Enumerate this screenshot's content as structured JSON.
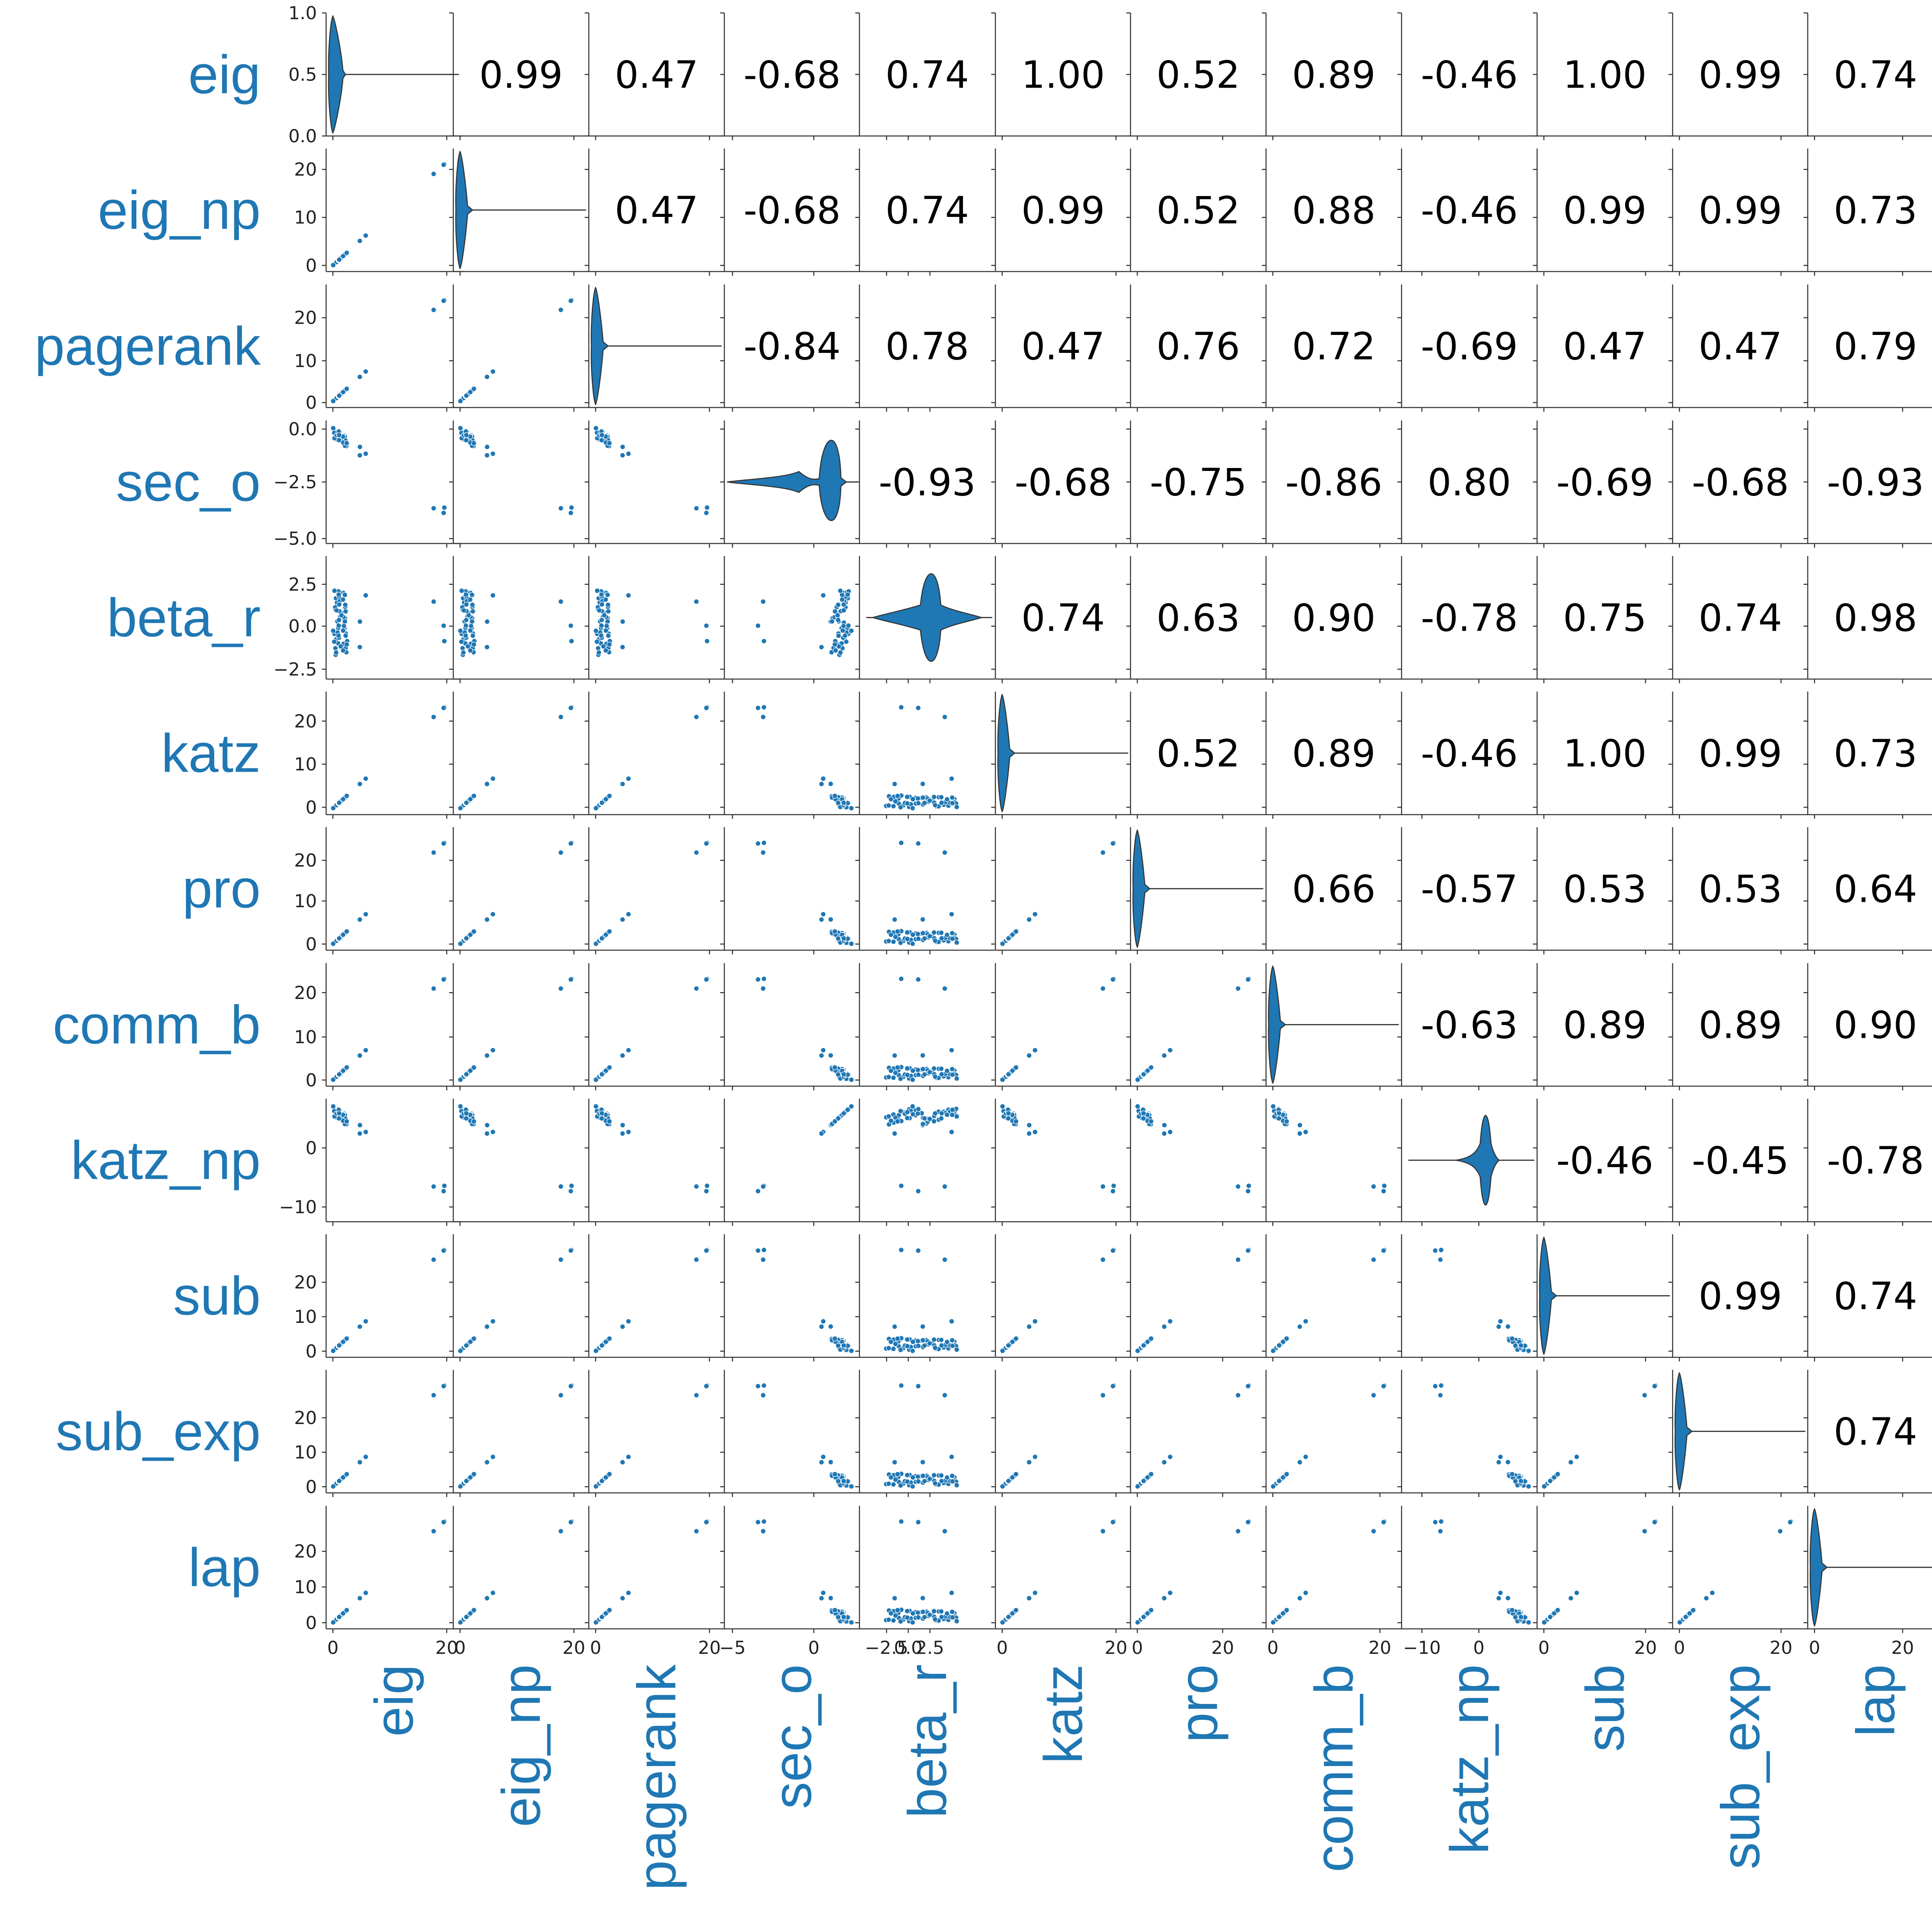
{
  "chart_data": {
    "type": "scatter",
    "title": "",
    "grid": false,
    "accent_color": "#1f77b4",
    "variables": [
      "eig",
      "eig_np",
      "pagerank",
      "sec_o",
      "beta_r",
      "katz",
      "pro",
      "comm_b",
      "katz_np",
      "sub",
      "sub_exp",
      "lap"
    ],
    "diagonal_type": "violin",
    "upper_type": "correlation",
    "lower_type": "scatter",
    "x_tick_labels": [
      [
        "0",
        "20"
      ],
      [
        "0",
        "20"
      ],
      [
        "0",
        "20"
      ],
      [
        "−5",
        "0"
      ],
      [
        "−2.5",
        "0.0",
        "2.5"
      ],
      [
        "0",
        "20"
      ],
      [
        "0",
        "20"
      ],
      [
        "0",
        "20"
      ],
      [
        "−10",
        "0"
      ],
      [
        "0",
        "20"
      ],
      [
        "0",
        "20"
      ],
      [
        "0",
        "20"
      ]
    ],
    "y_tick_labels": [
      [
        "0.0",
        "0.5",
        "1.0"
      ],
      [
        "0",
        "10",
        "20"
      ],
      [
        "0",
        "10",
        "20"
      ],
      [
        "−5.0",
        "−2.5",
        "0.0"
      ],
      [
        "−2.5",
        "0.0",
        "2.5"
      ],
      [
        "0",
        "10",
        "20"
      ],
      [
        "0",
        "10",
        "20"
      ],
      [
        "0",
        "10",
        "20"
      ],
      [
        "−10",
        "0"
      ],
      [
        "0",
        "10",
        "20"
      ],
      [
        "0",
        "10",
        "20"
      ],
      [
        "0",
        "10",
        "20"
      ]
    ],
    "correlations": [
      [
        null,
        "0.99",
        "0.47",
        "-0.68",
        "0.74",
        "1.00",
        "0.52",
        "0.89",
        "-0.46",
        "1.00",
        "0.99",
        "0.74"
      ],
      [
        null,
        null,
        "0.47",
        "-0.68",
        "0.74",
        "0.99",
        "0.52",
        "0.88",
        "-0.46",
        "0.99",
        "0.99",
        "0.73"
      ],
      [
        null,
        null,
        null,
        "-0.84",
        "0.78",
        "0.47",
        "0.76",
        "0.72",
        "-0.69",
        "0.47",
        "0.47",
        "0.79"
      ],
      [
        null,
        null,
        null,
        null,
        "-0.93",
        "-0.68",
        "-0.75",
        "-0.86",
        "0.80",
        "-0.69",
        "-0.68",
        "-0.93"
      ],
      [
        null,
        null,
        null,
        null,
        null,
        "0.74",
        "0.63",
        "0.90",
        "-0.78",
        "0.75",
        "0.74",
        "0.98"
      ],
      [
        null,
        null,
        null,
        null,
        null,
        null,
        "0.52",
        "0.89",
        "-0.46",
        "1.00",
        "0.99",
        "0.73"
      ],
      [
        null,
        null,
        null,
        null,
        null,
        null,
        null,
        "0.66",
        "-0.57",
        "0.53",
        "0.53",
        "0.64"
      ],
      [
        null,
        null,
        null,
        null,
        null,
        null,
        null,
        null,
        "-0.63",
        "0.89",
        "0.89",
        "0.90"
      ],
      [
        null,
        null,
        null,
        null,
        null,
        null,
        null,
        null,
        null,
        "-0.46",
        "-0.45",
        "-0.78"
      ],
      [
        null,
        null,
        null,
        null,
        null,
        null,
        null,
        null,
        null,
        null,
        "0.99",
        "0.74"
      ],
      [
        null,
        null,
        null,
        null,
        null,
        null,
        null,
        null,
        null,
        null,
        null,
        "0.74"
      ],
      [
        null,
        null,
        null,
        null,
        null,
        null,
        null,
        null,
        null,
        null,
        null,
        null
      ]
    ]
  }
}
